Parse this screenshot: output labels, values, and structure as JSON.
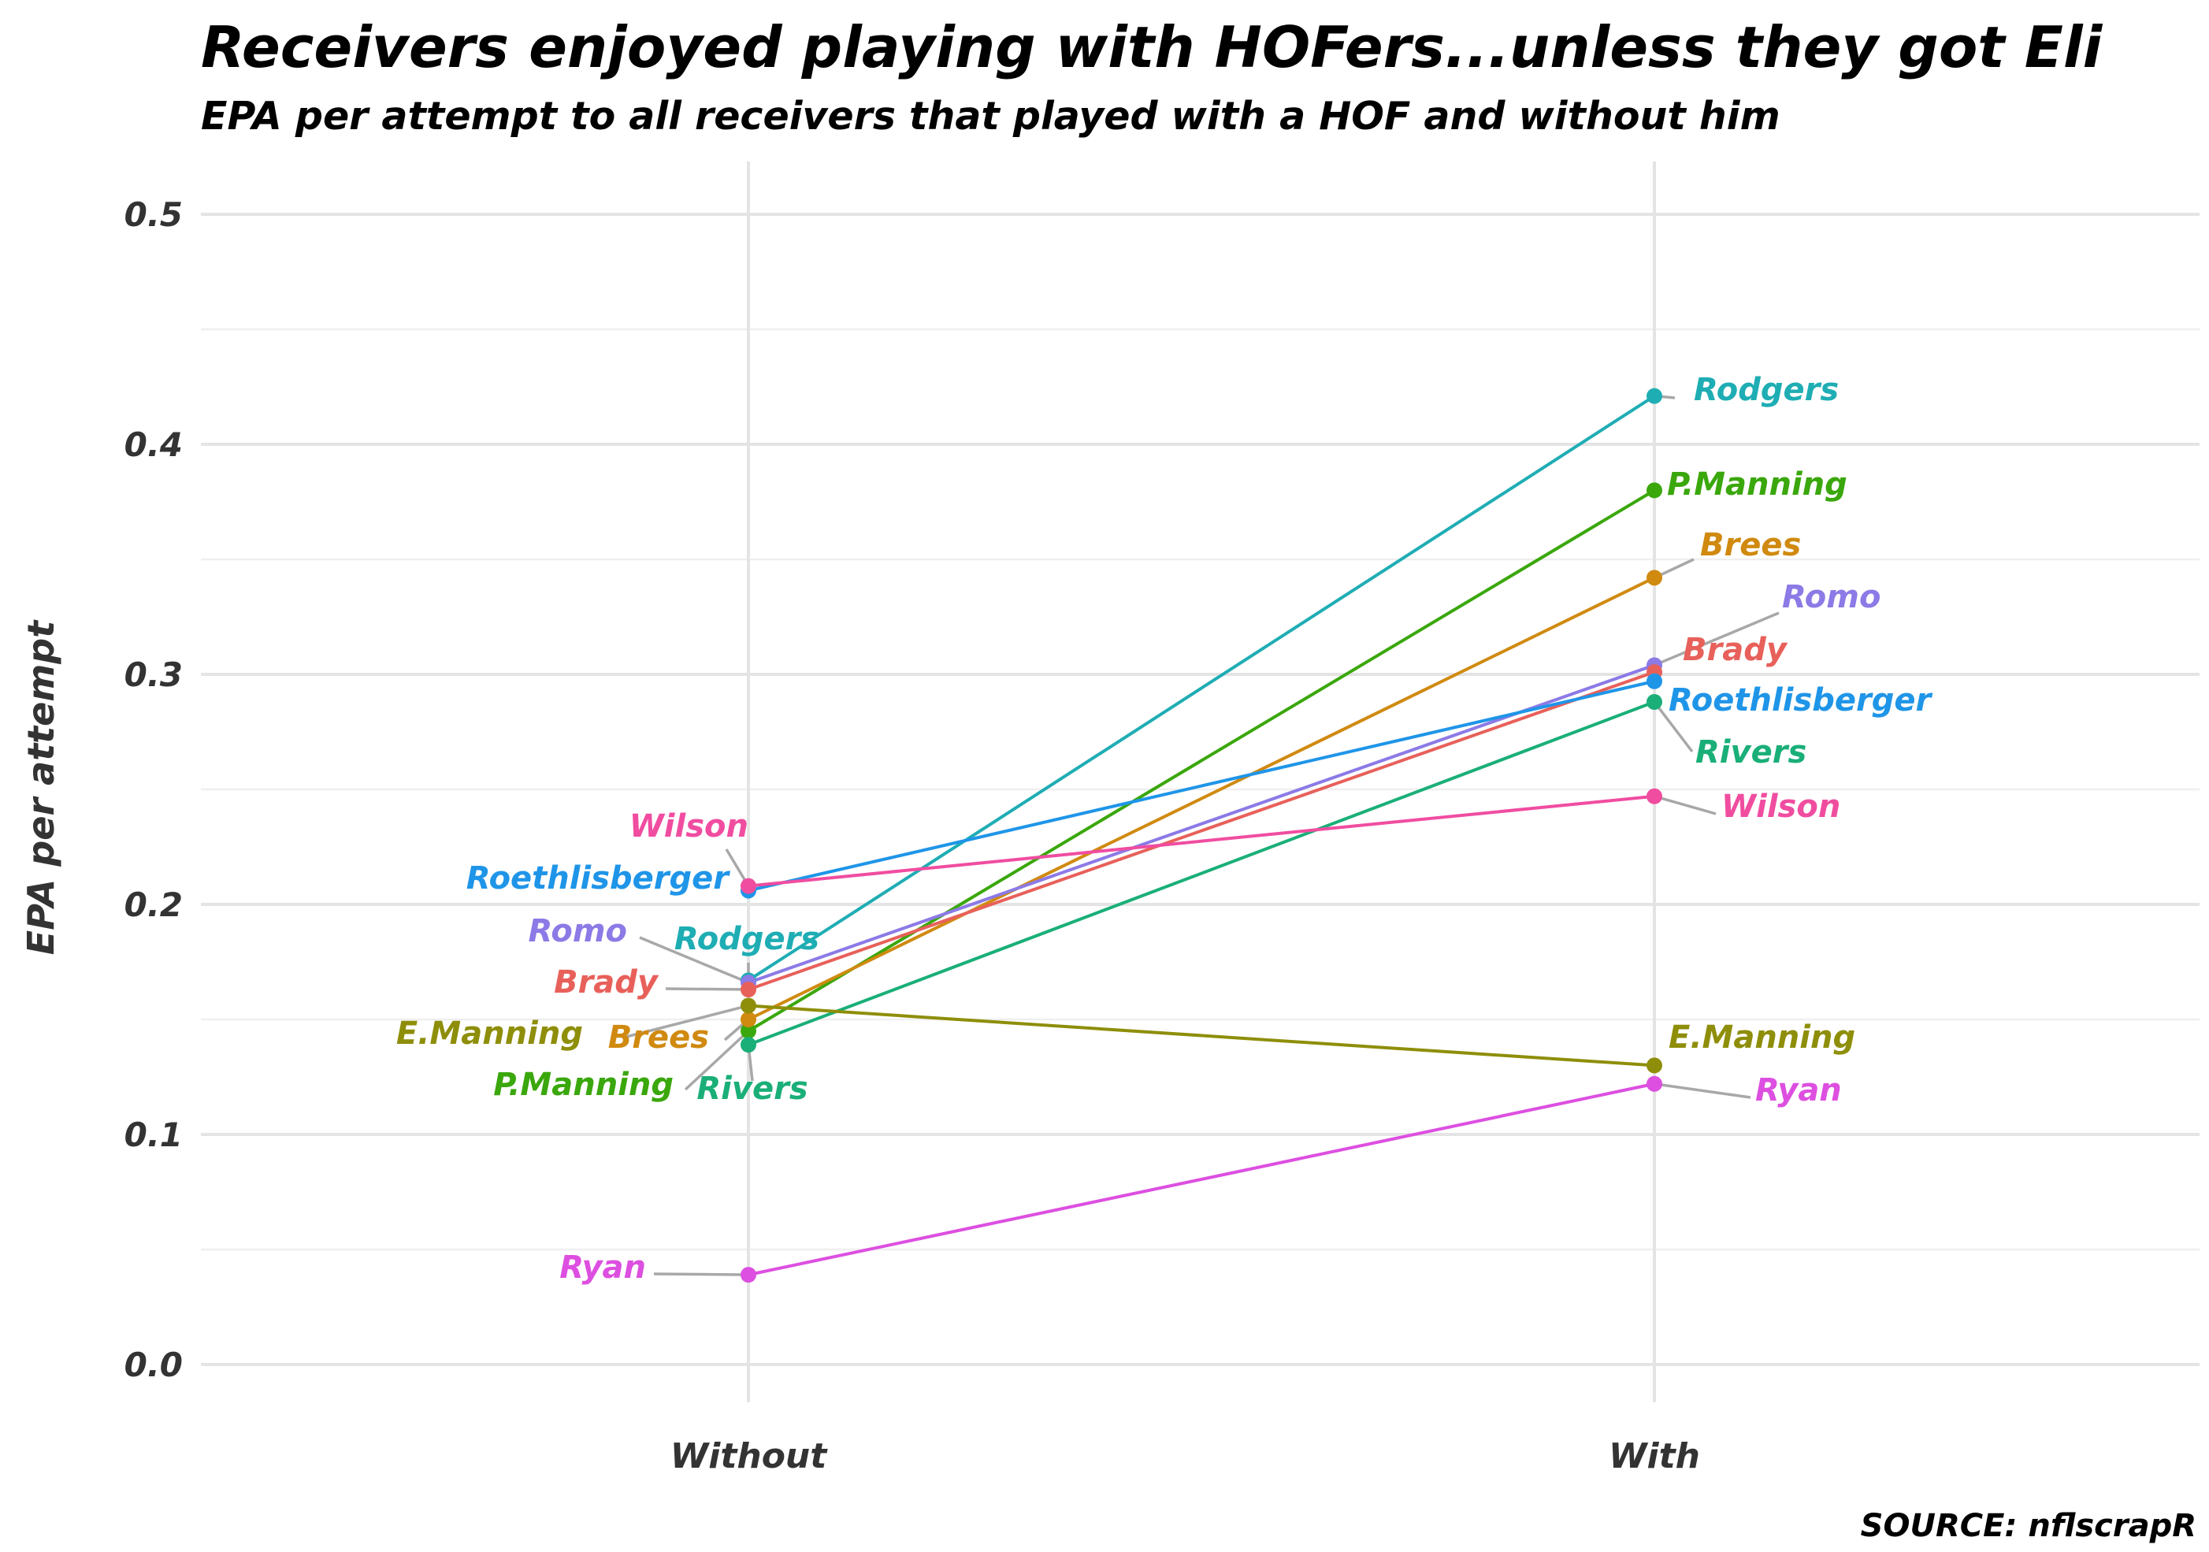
{
  "chart_data": {
    "type": "line",
    "title": "Receivers enjoyed playing with HOFers...unless they got Eli",
    "subtitle": "EPA per attempt to all receivers that played with a HOF and without him",
    "xlabel": "",
    "ylabel": "EPA per attempt",
    "caption": "SOURCE: nflscrapR",
    "categories": [
      "Without",
      "With"
    ],
    "ylim": [
      0.0,
      0.5
    ],
    "yticks": [
      "0.0",
      "0.1",
      "0.2",
      "0.3",
      "0.4",
      "0.5"
    ],
    "grid": true,
    "legend": "none",
    "series": [
      {
        "name": "Rodgers",
        "values": [
          0.167,
          0.421
        ],
        "color": "#1fadb4"
      },
      {
        "name": "P.Manning",
        "values": [
          0.145,
          0.38
        ],
        "color": "#3aa70c"
      },
      {
        "name": "Brees",
        "values": [
          0.15,
          0.342
        ],
        "color": "#d08a10"
      },
      {
        "name": "Romo",
        "values": [
          0.166,
          0.304
        ],
        "color": "#8c7ae6"
      },
      {
        "name": "Brady",
        "values": [
          0.163,
          0.301
        ],
        "color": "#e8605a"
      },
      {
        "name": "Roethlisberger",
        "values": [
          0.206,
          0.297
        ],
        "color": "#1f95e8"
      },
      {
        "name": "Rivers",
        "values": [
          0.139,
          0.288
        ],
        "color": "#1aaf78"
      },
      {
        "name": "Wilson",
        "values": [
          0.208,
          0.247
        ],
        "color": "#f04da0"
      },
      {
        "name": "E.Manning",
        "values": [
          0.156,
          0.13
        ],
        "color": "#8e8e0a"
      },
      {
        "name": "Ryan",
        "values": [
          0.039,
          0.122
        ],
        "color": "#dd4fe0"
      }
    ]
  }
}
